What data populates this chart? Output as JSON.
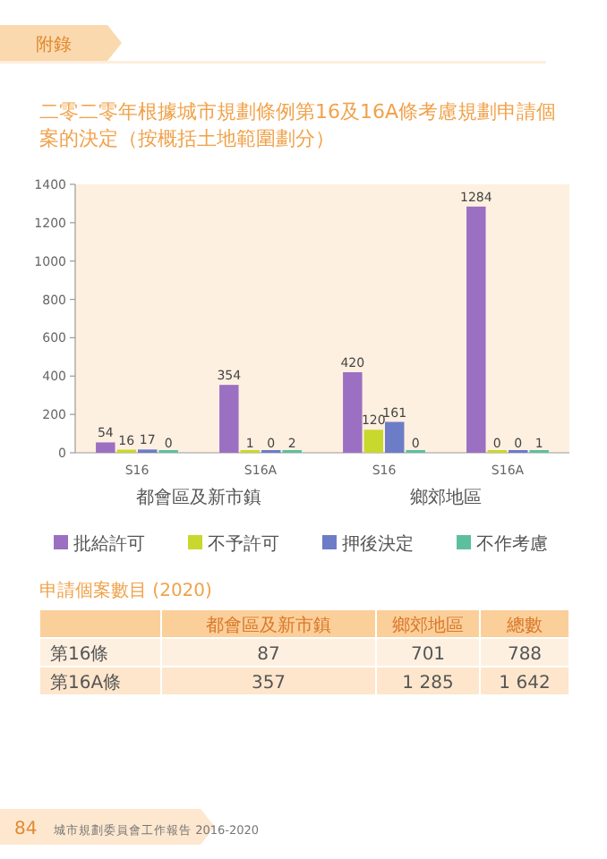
{
  "chart_data": [
    {
      "type": "bar",
      "title": "二零二零年根據城市規劃條例第16及16A條考慮規劃申請個案的決定（按概括土地範圍劃分）",
      "categories": [
        "S16",
        "S16A",
        "S16",
        "S16A"
      ],
      "series": [
        {
          "name": "批給許可",
          "color": "#9b6fc1",
          "values": [
            54,
            354,
            420,
            1284
          ]
        },
        {
          "name": "不予許可",
          "color": "#c8d82c",
          "values": [
            16,
            1,
            120,
            0
          ]
        },
        {
          "name": "押後決定",
          "color": "#6d7cc6",
          "values": [
            17,
            0,
            161,
            0
          ]
        },
        {
          "name": "不作考慮",
          "color": "#5cbfa0",
          "values": [
            0,
            2,
            0,
            1
          ]
        }
      ],
      "ylim": [
        0,
        1400
      ],
      "yticks": [
        0,
        200,
        400,
        600,
        800,
        1000,
        1200,
        1400
      ],
      "data_labels": true,
      "grid": false,
      "legend": "bottom",
      "annotations": [
        "都會區及新市鎮",
        "鄉郊地區",
        "附錄",
        "84",
        "城市規劃委員會工作報告 2016-2020"
      ]
    },
    {
      "type": "other",
      "title": "申請個案數目 (2020)",
      "annotations": [
        "都會區及新市鎮",
        "鄉郊地區",
        "總數",
        "第16條",
        "87",
        "701",
        "788",
        "第16A條",
        "357",
        "1 285",
        "1 642"
      ]
    }
  ]
}
